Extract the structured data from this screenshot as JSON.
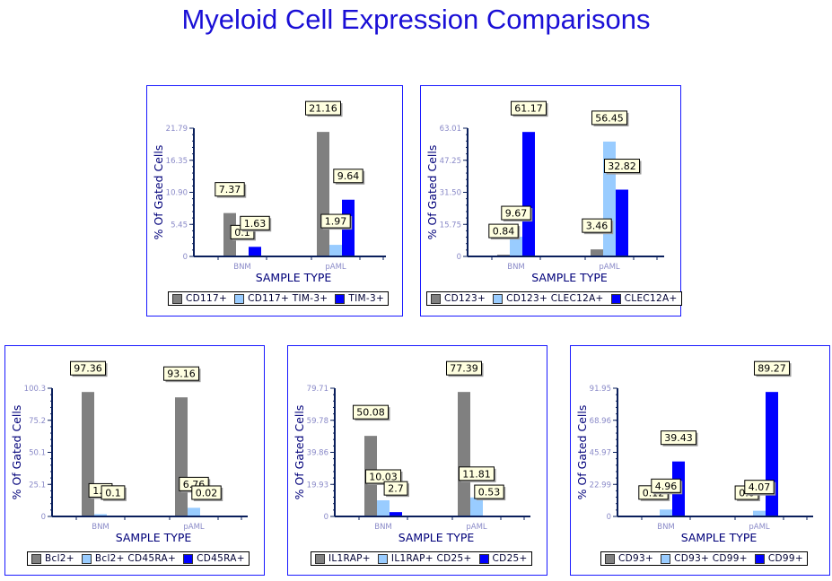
{
  "title": "Myeloid Cell Expression Comparisons",
  "colors": {
    "title": "#1a0fd6",
    "series": [
      "#808080",
      "#99ccff",
      "#0000ff"
    ],
    "axis": "#0a1f5c",
    "tick_label": "#8a8ac8",
    "data_label_bg": "#ffffe0"
  },
  "chart_data": [
    {
      "type": "bar",
      "xlabel": "SAMPLE TYPE",
      "ylabel": "% Of Gated Cells",
      "categories": [
        "BNM",
        "pAML"
      ],
      "ylim": [
        0,
        21.79
      ],
      "yticks": [
        "0",
        "5.45",
        "10.90",
        "16.35",
        "21.79"
      ],
      "legend": "bottom",
      "series": [
        {
          "name": "CD117+",
          "values": [
            7.37,
            21.16
          ],
          "labels": [
            "7.37",
            "21.16"
          ]
        },
        {
          "name": "CD117+ TIM-3+",
          "values": [
            0.1,
            1.97
          ],
          "labels": [
            "0.1",
            "1.97"
          ]
        },
        {
          "name": "TIM-3+",
          "values": [
            1.63,
            9.64
          ],
          "labels": [
            "1.63",
            "9.64"
          ]
        }
      ]
    },
    {
      "type": "bar",
      "xlabel": "SAMPLE TYPE",
      "ylabel": "% Of Gated Cells",
      "categories": [
        "BNM",
        "pAML"
      ],
      "ylim": [
        0,
        63.01
      ],
      "yticks": [
        "0",
        "15.75",
        "31.50",
        "47.25",
        "63.01"
      ],
      "legend": "bottom",
      "series": [
        {
          "name": "CD123+",
          "values": [
            0.84,
            3.46
          ],
          "labels": [
            "0.84",
            "3.46"
          ]
        },
        {
          "name": "CD123+ CLEC12A+",
          "values": [
            9.67,
            56.45
          ],
          "labels": [
            "9.67",
            "56.45"
          ]
        },
        {
          "name": "CLEC12A+",
          "values": [
            61.17,
            32.82
          ],
          "labels": [
            "61.17",
            "32.82"
          ]
        }
      ]
    },
    {
      "type": "bar",
      "xlabel": "SAMPLE TYPE",
      "ylabel": "% Of Gated Cells",
      "categories": [
        "BNM",
        "pAML"
      ],
      "ylim": [
        0,
        100.3
      ],
      "yticks": [
        "0",
        "25.1",
        "50.1",
        "75.2",
        "100.3"
      ],
      "legend": "bottom",
      "series": [
        {
          "name": "Bcl2+",
          "values": [
            97.36,
            93.16
          ],
          "labels": [
            "97.36",
            "93.16"
          ]
        },
        {
          "name": "Bcl2+ CD45RA+",
          "values": [
            1.8,
            6.76
          ],
          "labels": [
            "1.8",
            "6.76"
          ]
        },
        {
          "name": "CD45RA+",
          "values": [
            0.1,
            0.02
          ],
          "labels": [
            "0.1",
            "0.02"
          ]
        }
      ]
    },
    {
      "type": "bar",
      "xlabel": "SAMPLE TYPE",
      "ylabel": "% Of Gated Cells",
      "categories": [
        "BNM",
        "pAML"
      ],
      "ylim": [
        0,
        79.71
      ],
      "yticks": [
        "0",
        "19.93",
        "39.86",
        "59.78",
        "79.71"
      ],
      "legend": "bottom",
      "series": [
        {
          "name": "IL1RAP+",
          "values": [
            50.08,
            77.39
          ],
          "labels": [
            "50.08",
            "77.39"
          ]
        },
        {
          "name": "IL1RAP+ CD25+",
          "values": [
            10.03,
            11.81
          ],
          "labels": [
            "10.03",
            "11.81"
          ]
        },
        {
          "name": "CD25+",
          "values": [
            2.7,
            0.53
          ],
          "labels": [
            "2.7",
            "0.53"
          ]
        }
      ]
    },
    {
      "type": "bar",
      "xlabel": "SAMPLE TYPE",
      "ylabel": "% Of Gated Cells",
      "categories": [
        "BNM",
        "pAML"
      ],
      "ylim": [
        0,
        91.95
      ],
      "yticks": [
        "0",
        "22.99",
        "45.97",
        "68.96",
        "91.95"
      ],
      "legend": "bottom",
      "series": [
        {
          "name": "CD93+",
          "values": [
            0.12,
            0.0
          ],
          "labels": [
            "0.12",
            "0.0"
          ]
        },
        {
          "name": "CD93+ CD99+",
          "values": [
            4.96,
            4.07
          ],
          "labels": [
            "4.96",
            "4.07"
          ]
        },
        {
          "name": "CD99+",
          "values": [
            39.43,
            89.27
          ],
          "labels": [
            "39.43",
            "89.27"
          ]
        }
      ]
    }
  ]
}
